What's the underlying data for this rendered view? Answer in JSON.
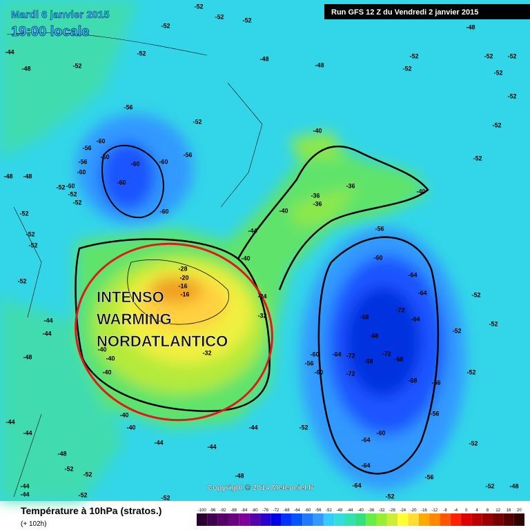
{
  "header": {
    "date": "Mardi 6 janvier 2015",
    "time": "19:00 locale",
    "run": "Run GFS 12 Z du Vendredi 2 janvier 2015"
  },
  "annotation": [
    "INTENSO",
    "WARMING",
    "NORDATLANTICO"
  ],
  "contour_labels": [
    -52,
    -52,
    -52,
    -52,
    -44,
    -48,
    -52,
    -52,
    -48,
    -48,
    -52,
    -48,
    -52,
    -52,
    -52,
    -52,
    -52,
    -56,
    -52,
    -60,
    -56,
    -60,
    -60,
    -60,
    -56,
    -56,
    -60,
    -60,
    -52,
    -52,
    -52,
    -60,
    -60,
    -48,
    -48,
    -52,
    -52,
    -52,
    -52,
    -44,
    -44,
    -48,
    -44,
    -44,
    -48,
    -52,
    -52,
    -44,
    -44,
    -52,
    -52,
    -40,
    -36,
    -36,
    -36,
    -40,
    -44,
    -40,
    -40,
    -52,
    -52,
    -56,
    -60,
    -64,
    -64,
    -72,
    -68,
    -64,
    -68,
    -72,
    -68,
    -72,
    -64,
    -68,
    -72,
    -60,
    -56,
    -60,
    -68,
    -56,
    -56,
    -60,
    -64,
    -64,
    -64,
    -56,
    -52,
    -52,
    -52,
    -52,
    -52,
    -52,
    -44,
    -44,
    -44,
    -40,
    -40,
    -40,
    -40,
    -40,
    -32,
    -16,
    -20,
    -16,
    -32,
    -48,
    -52,
    -48,
    -52,
    -28,
    -24
  ],
  "copyright": "Copyright © 2014 Meteociel.fr",
  "footer": {
    "title": "Température à 10hPa (stratos.)",
    "lead": "(+ 102h)"
  },
  "scale": {
    "labels": [
      -100,
      -96,
      -92,
      -88,
      -84,
      -80,
      -76,
      -72,
      -68,
      -64,
      -60,
      -56,
      -52,
      -48,
      -44,
      -40,
      -36,
      -32,
      -28,
      -24,
      -20,
      -16,
      -12,
      -8,
      -4,
      0,
      4,
      8,
      12,
      16,
      20
    ],
    "colors": [
      "#2a0033",
      "#3f004f",
      "#550066",
      "#6a0080",
      "#7f0099",
      "#5500aa",
      "#2a00cc",
      "#0000e6",
      "#0033ff",
      "#0055ff",
      "#2277ff",
      "#3399ff",
      "#33ccff",
      "#33dddd",
      "#33e0b0",
      "#33e080",
      "#66ee44",
      "#99ee33",
      "#ccee33",
      "#ffff33",
      "#ffdd33",
      "#ffaa00",
      "#ff8800",
      "#ff5500",
      "#ff2200",
      "#dd0000",
      "#bb0000",
      "#990000",
      "#770000",
      "#550000",
      "#330000"
    ]
  }
}
